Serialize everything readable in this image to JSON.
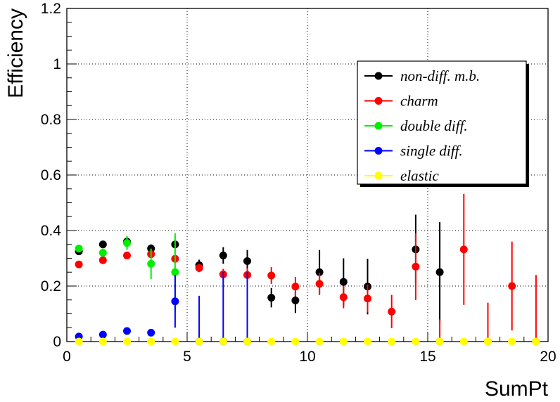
{
  "chart_data": {
    "type": "scatter",
    "title": "",
    "xlabel": "SumPt",
    "ylabel": "Efficiency",
    "xlim": [
      0,
      20
    ],
    "ylim": [
      0,
      1.2
    ],
    "xticks": [
      "0",
      "5",
      "10",
      "15",
      "20"
    ],
    "yticks": [
      "0",
      "0.2",
      "0.4",
      "0.6",
      "0.8",
      "1",
      "1.2"
    ],
    "grid": true,
    "legend_position": "top-right",
    "series": [
      {
        "name": "non-diff. m.b.",
        "color": "#000000",
        "points": [
          {
            "x": 0.5,
            "y": 0.325,
            "err": 0.012
          },
          {
            "x": 1.5,
            "y": 0.35,
            "err": 0.01
          },
          {
            "x": 2.5,
            "y": 0.36,
            "err": 0.012
          },
          {
            "x": 3.5,
            "y": 0.335,
            "err": 0.015
          },
          {
            "x": 4.5,
            "y": 0.35,
            "err": 0.015
          },
          {
            "x": 5.5,
            "y": 0.275,
            "err": 0.02
          },
          {
            "x": 6.5,
            "y": 0.31,
            "err": 0.03
          },
          {
            "x": 7.5,
            "y": 0.29,
            "err": 0.04
          },
          {
            "x": 8.5,
            "y": 0.158,
            "err": 0.035
          },
          {
            "x": 9.5,
            "y": 0.148,
            "err": 0.045
          },
          {
            "x": 10.5,
            "y": 0.25,
            "err": 0.08
          },
          {
            "x": 11.5,
            "y": 0.215,
            "err": 0.085
          },
          {
            "x": 12.5,
            "y": 0.198,
            "err": 0.1
          },
          {
            "x": 14.5,
            "y": 0.332,
            "err": 0.125
          },
          {
            "x": 15.5,
            "y": 0.25,
            "err": 0.18
          }
        ]
      },
      {
        "name": "charm",
        "color": "#ff0000",
        "points": [
          {
            "x": 0.5,
            "y": 0.278,
            "err": 0.008
          },
          {
            "x": 1.5,
            "y": 0.293,
            "err": 0.008
          },
          {
            "x": 2.5,
            "y": 0.31,
            "err": 0.008
          },
          {
            "x": 3.5,
            "y": 0.315,
            "err": 0.012
          },
          {
            "x": 4.5,
            "y": 0.298,
            "err": 0.015
          },
          {
            "x": 5.5,
            "y": 0.265,
            "err": 0.015
          },
          {
            "x": 6.5,
            "y": 0.242,
            "err": 0.02
          },
          {
            "x": 7.5,
            "y": 0.24,
            "err": 0.025
          },
          {
            "x": 8.5,
            "y": 0.238,
            "err": 0.03
          },
          {
            "x": 9.5,
            "y": 0.198,
            "err": 0.035
          },
          {
            "x": 10.5,
            "y": 0.208,
            "err": 0.04
          },
          {
            "x": 11.5,
            "y": 0.16,
            "err": 0.04
          },
          {
            "x": 12.5,
            "y": 0.155,
            "err": 0.05
          },
          {
            "x": 13.5,
            "y": 0.108,
            "err": 0.06
          },
          {
            "x": 14.5,
            "y": 0.27,
            "err": 0.12
          },
          {
            "x": 15.5,
            "y": 0.0,
            "err": 0.08
          },
          {
            "x": 16.5,
            "y": 0.332,
            "err": 0.2
          },
          {
            "x": 17.5,
            "y": 0.0,
            "err": 0.14
          },
          {
            "x": 18.5,
            "y": 0.2,
            "err": 0.16
          },
          {
            "x": 19.5,
            "y": 0.0,
            "err": 0.24
          }
        ]
      },
      {
        "name": "double diff.",
        "color": "#00ee00",
        "points": [
          {
            "x": 0.5,
            "y": 0.335,
            "err": 0.01
          },
          {
            "x": 1.5,
            "y": 0.32,
            "err": 0.015
          },
          {
            "x": 2.5,
            "y": 0.355,
            "err": 0.025
          },
          {
            "x": 3.5,
            "y": 0.28,
            "err": 0.055
          },
          {
            "x": 4.5,
            "y": 0.25,
            "err": 0.14
          }
        ]
      },
      {
        "name": "single diff.",
        "color": "#0000ff",
        "points": [
          {
            "x": 0.5,
            "y": 0.018,
            "err": 0.005
          },
          {
            "x": 1.5,
            "y": 0.025,
            "err": 0.006
          },
          {
            "x": 2.5,
            "y": 0.038,
            "err": 0.008
          },
          {
            "x": 3.5,
            "y": 0.032,
            "err": 0.008
          },
          {
            "x": 4.5,
            "y": 0.145,
            "err": 0.095
          },
          {
            "x": 5.5,
            "y": 0.0,
            "err": 0.165
          },
          {
            "x": 6.5,
            "y": 0.0,
            "err": 0.25
          },
          {
            "x": 7.5,
            "y": 0.0,
            "err": 0.25
          }
        ]
      },
      {
        "name": "elastic",
        "color": "#ffff00",
        "points": [
          {
            "x": 0.5,
            "y": 0.0,
            "err": 0
          },
          {
            "x": 1.5,
            "y": 0.0,
            "err": 0
          },
          {
            "x": 2.5,
            "y": 0.0,
            "err": 0
          },
          {
            "x": 3.5,
            "y": 0.0,
            "err": 0
          },
          {
            "x": 4.5,
            "y": 0.0,
            "err": 0
          },
          {
            "x": 5.5,
            "y": 0.0,
            "err": 0
          },
          {
            "x": 6.5,
            "y": 0.0,
            "err": 0
          },
          {
            "x": 7.5,
            "y": 0.0,
            "err": 0
          },
          {
            "x": 8.5,
            "y": 0.0,
            "err": 0
          },
          {
            "x": 9.5,
            "y": 0.0,
            "err": 0
          },
          {
            "x": 10.5,
            "y": 0.0,
            "err": 0
          },
          {
            "x": 11.5,
            "y": 0.0,
            "err": 0
          },
          {
            "x": 12.5,
            "y": 0.0,
            "err": 0
          },
          {
            "x": 13.5,
            "y": 0.0,
            "err": 0
          },
          {
            "x": 14.5,
            "y": 0.0,
            "err": 0
          },
          {
            "x": 15.5,
            "y": 0.0,
            "err": 0
          },
          {
            "x": 16.5,
            "y": 0.0,
            "err": 0
          },
          {
            "x": 17.5,
            "y": 0.0,
            "err": 0
          },
          {
            "x": 18.5,
            "y": 0.0,
            "err": 0
          },
          {
            "x": 19.5,
            "y": 0.0,
            "err": 0
          }
        ]
      }
    ]
  }
}
